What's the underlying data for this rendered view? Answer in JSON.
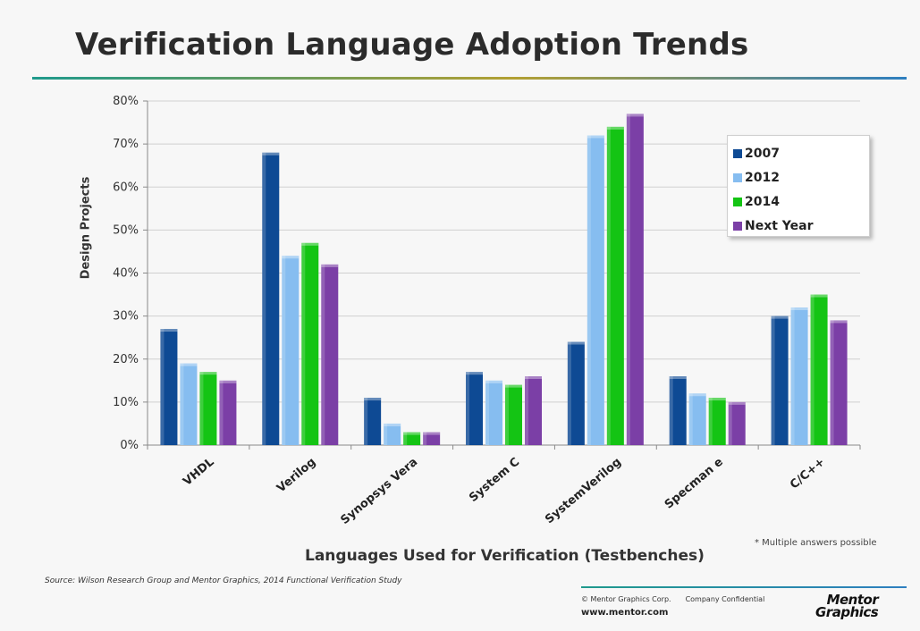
{
  "slide": {
    "title": "Verification Language Adoption Trends",
    "footnote": "* Multiple answers possible",
    "source": "Source:  Wilson Research Group and Mentor Graphics, 2014 Functional Verification Study",
    "copyright": "© Mentor Graphics Corp.",
    "confidential": "Company Confidential",
    "website": "www.mentor.com",
    "logo_line1": "Mentor",
    "logo_line2": "Graphics"
  },
  "colors": {
    "2007": "#0e4a94",
    "2012": "#86bdf0",
    "2014": "#14c414",
    "Next Year": "#7b3fa6"
  },
  "chart_data": {
    "type": "bar",
    "title": "Verification Language Adoption Trends",
    "xlabel": "Languages Used for Verification (Testbenches)",
    "ylabel": "Design Projects",
    "ylim": [
      0,
      80
    ],
    "yticks": [
      "0%",
      "10%",
      "20%",
      "30%",
      "40%",
      "50%",
      "60%",
      "70%",
      "80%"
    ],
    "grid": true,
    "legend_position": "top-right",
    "categories": [
      "VHDL",
      "Verilog",
      "Synopsys Vera",
      "System C",
      "SystemVerilog",
      "Specman e",
      "C/C++"
    ],
    "series": [
      {
        "name": "2007",
        "values": [
          27,
          68,
          11,
          17,
          24,
          16,
          30
        ]
      },
      {
        "name": "2012",
        "values": [
          19,
          44,
          5,
          15,
          72,
          12,
          32
        ]
      },
      {
        "name": "2014",
        "values": [
          17,
          47,
          3,
          14,
          74,
          11,
          35
        ]
      },
      {
        "name": "Next Year",
        "values": [
          15,
          42,
          3,
          16,
          77,
          10,
          29
        ]
      }
    ]
  }
}
